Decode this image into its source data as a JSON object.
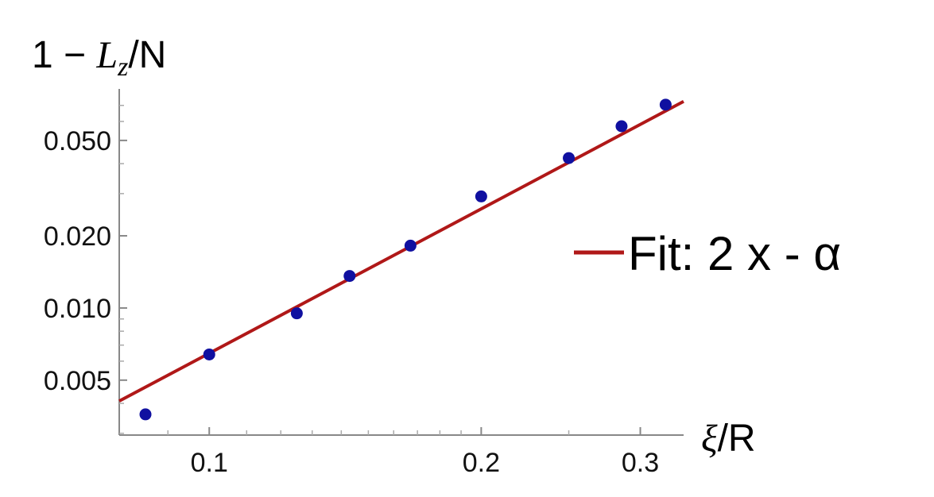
{
  "chart_data": {
    "type": "scatter",
    "x_scale": "log",
    "y_scale": "log",
    "xlim": [
      0.0795,
      0.335
    ],
    "ylim": [
      0.00295,
      0.082
    ],
    "xlabel": {
      "symbol": "ξ",
      "suffix": "/R"
    },
    "ylabel": {
      "prefix": "1 − ",
      "symbol": "L",
      "subscript": "z",
      "suffix": "/N"
    },
    "x_ticks": [
      {
        "value": 0.1,
        "label": "0.1"
      },
      {
        "value": 0.2,
        "label": "0.2"
      },
      {
        "value": 0.3,
        "label": "0.3"
      }
    ],
    "y_ticks": [
      {
        "value": 0.005,
        "label": "0.005"
      },
      {
        "value": 0.01,
        "label": "0.010"
      },
      {
        "value": 0.02,
        "label": "0.020"
      },
      {
        "value": 0.05,
        "label": "0.050"
      }
    ],
    "x_minor_ticks": [
      0.09,
      0.11,
      0.12,
      0.13,
      0.14,
      0.15,
      0.16,
      0.17,
      0.18,
      0.19,
      0.25
    ],
    "y_minor_ticks": [
      0.003,
      0.004,
      0.006,
      0.007,
      0.008,
      0.009,
      0.03,
      0.04,
      0.06,
      0.07
    ],
    "series": [
      {
        "kind": "points",
        "color": "#1010a0",
        "x": [
          0.085,
          0.1,
          0.125,
          0.143,
          0.167,
          0.2,
          0.25,
          0.286,
          0.32
        ],
        "y": [
          0.0036,
          0.0064,
          0.0095,
          0.0136,
          0.0182,
          0.0292,
          0.0422,
          0.0573,
          0.0705
        ]
      },
      {
        "kind": "line",
        "name": "Fit: 2 x - α",
        "color": "#b01818",
        "x": [
          0.0795,
          0.335
        ],
        "y": [
          0.00409,
          0.0727
        ]
      }
    ],
    "legend": {
      "position": "right",
      "label": "Fit: 2 x - α",
      "color": "#b01818"
    }
  }
}
